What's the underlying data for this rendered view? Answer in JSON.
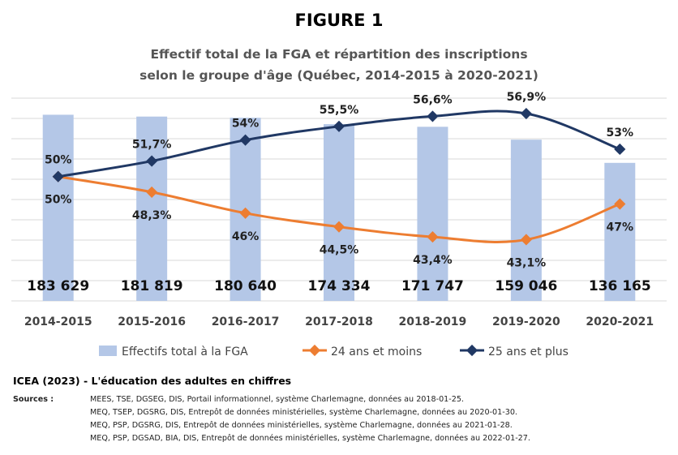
{
  "figure_label": "FIGURE 1",
  "chart_data": {
    "type": "bar",
    "title": "Effectif total de la FGA et répartition des inscriptions",
    "subtitle": "selon le groupe d'âge (Québec, 2014-2015 à 2020-2021)",
    "categories": [
      "2014-2015",
      "2015-2016",
      "2016-2017",
      "2017-2018",
      "2018-2019",
      "2019-2020",
      "2020-2021"
    ],
    "bars": {
      "name": "Effectifs total à la FGA",
      "values": [
        183629,
        181819,
        180640,
        174334,
        171747,
        159046,
        136165
      ],
      "labels": [
        "183 629",
        "181 819",
        "180 640",
        "174 334",
        "171 747",
        "159 046",
        "136 165"
      ],
      "color": "#b4c7e7"
    },
    "series": [
      {
        "name": "24 ans et moins",
        "type": "line",
        "values": [
          50,
          48.3,
          46,
          44.5,
          43.4,
          43.1,
          47
        ],
        "labels": [
          "50%",
          "48,3%",
          "46%",
          "44,5%",
          "43,4%",
          "43,1%",
          "47%"
        ],
        "color": "#ed7d31"
      },
      {
        "name": "25 ans et plus",
        "type": "line",
        "values": [
          50,
          51.7,
          54,
          55.5,
          56.6,
          56.9,
          53
        ],
        "labels": [
          "50%",
          "51,7%",
          "54%",
          "55,5%",
          "56,6%",
          "56,9%",
          "53%"
        ],
        "color": "#203864"
      }
    ],
    "legend_position": "bottom",
    "grid": true
  },
  "source_line": "ICEA (2023) - L'éducation des adultes en chiffres",
  "sources_label": "Sources :",
  "sources": [
    "MEES, TSE, DGSEG, DIS, Portail informationnel, système Charlemagne, données au 2018-01-25.",
    "MEQ, TSEP, DGSRG, DIS, Entrepôt de données ministérielles, système Charlemagne, données au 2020-01-30.",
    "MEQ, PSP, DGSRG, DIS, Entrepôt de données ministérielles, système Charlemagne, données au 2021-01-28.",
    "MEQ, PSP, DGSAD, BIA, DIS, Entrepôt de données ministérielles, système Charlemagne, données au 2022-01-27."
  ]
}
